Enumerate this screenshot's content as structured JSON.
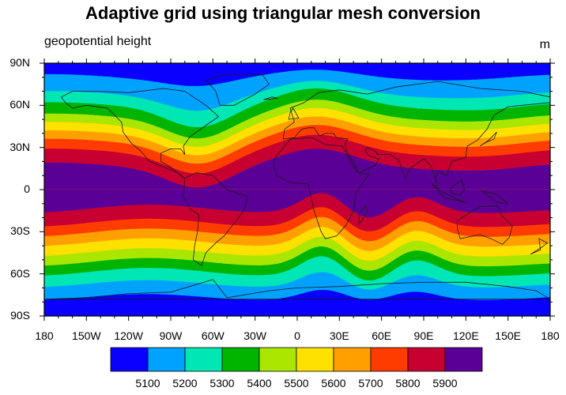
{
  "title": "Adaptive grid using triangular mesh conversion",
  "left_subtitle": "geopotential height",
  "right_subtitle": "m",
  "chart_data": {
    "type": "contour-map",
    "title": "Adaptive grid using triangular mesh conversion",
    "variable": "geopotential height",
    "units": "m",
    "projection": "cylindrical equidistant",
    "xlim": [
      -180,
      180
    ],
    "ylim": [
      -90,
      90
    ],
    "lat_ticks": [
      {
        "value": 90,
        "label": "90N"
      },
      {
        "value": 60,
        "label": "60N"
      },
      {
        "value": 30,
        "label": "30N"
      },
      {
        "value": 0,
        "label": "0"
      },
      {
        "value": -30,
        "label": "30S"
      },
      {
        "value": -60,
        "label": "60S"
      },
      {
        "value": -90,
        "label": "90S"
      }
    ],
    "lon_ticks": [
      {
        "value": -180,
        "label": "180"
      },
      {
        "value": -150,
        "label": "150W"
      },
      {
        "value": -120,
        "label": "120W"
      },
      {
        "value": -90,
        "label": "90W"
      },
      {
        "value": -60,
        "label": "60W"
      },
      {
        "value": -30,
        "label": "30W"
      },
      {
        "value": 0,
        "label": "0"
      },
      {
        "value": 30,
        "label": "30E"
      },
      {
        "value": 60,
        "label": "60E"
      },
      {
        "value": 90,
        "label": "90E"
      },
      {
        "value": 120,
        "label": "120E"
      },
      {
        "value": 150,
        "label": "150E"
      },
      {
        "value": 180,
        "label": "180"
      }
    ],
    "contour_levels": [
      "5100",
      "5200",
      "5300",
      "5400",
      "5500",
      "5600",
      "5700",
      "5800",
      "5900"
    ],
    "fill_colors": [
      "#0a00ff",
      "#00a2ff",
      "#00e6b4",
      "#00b400",
      "#aae600",
      "#ffe100",
      "#ffa000",
      "#ff3c00",
      "#c80032",
      "#5a0096"
    ],
    "band_edges_north": [
      80,
      68,
      60,
      52,
      46,
      40,
      34,
      27,
      17
    ],
    "band_edges_south": [
      -77,
      -68,
      -60,
      -53,
      -46,
      -39,
      -32,
      -25,
      -15
    ],
    "troughs": [
      {
        "hemisphere": "north",
        "center_lon": -70,
        "width_deg": 22,
        "depth_deg": 14
      },
      {
        "hemisphere": "north",
        "center_lon": 15,
        "width_deg": 25,
        "depth_deg": -10
      },
      {
        "hemisphere": "north",
        "center_lon": 140,
        "width_deg": 30,
        "depth_deg": 3
      },
      {
        "hemisphere": "south",
        "center_lon": 18,
        "width_deg": 15,
        "depth_deg": -13
      },
      {
        "hemisphere": "south",
        "center_lon": 50,
        "width_deg": 15,
        "depth_deg": 8
      },
      {
        "hemisphere": "south",
        "center_lon": 85,
        "width_deg": 15,
        "depth_deg": -10
      },
      {
        "hemisphere": "south",
        "center_lon": -100,
        "width_deg": 40,
        "depth_deg": -3
      }
    ],
    "grid": false,
    "legend": "colorbar-bottom"
  }
}
